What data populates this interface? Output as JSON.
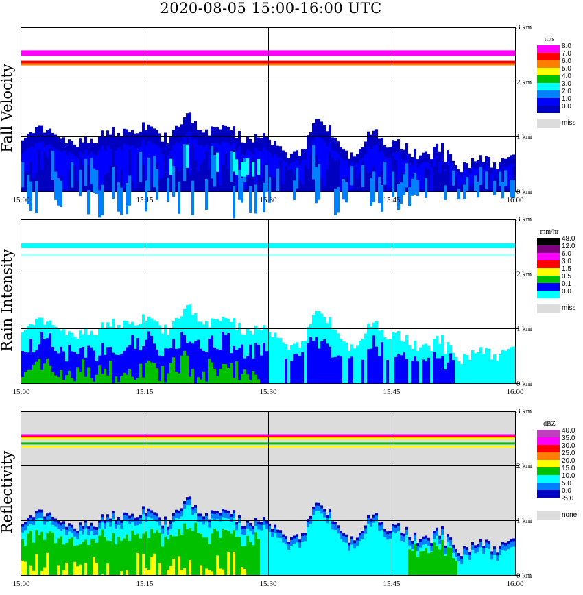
{
  "title": "2020-08-05   15:00-16:00 UTC",
  "x_ticks": [
    "15:00",
    "15:15",
    "15:30",
    "15:45",
    "16:00"
  ],
  "y_ticks": [
    "0 km",
    "1 km",
    "2 km",
    "3 km"
  ],
  "panels": [
    {
      "name": "Fall Velocity",
      "unit": "m/s",
      "legend": [
        {
          "label": "8.0",
          "color": "#ff00ff"
        },
        {
          "label": "7.0",
          "color": "#ff0000"
        },
        {
          "label": "6.0",
          "color": "#ff8000"
        },
        {
          "label": "5.0",
          "color": "#ffff00"
        },
        {
          "label": "4.0",
          "color": "#00c000"
        },
        {
          "label": "3.0",
          "color": "#00ffff"
        },
        {
          "label": "2.0",
          "color": "#0080ff"
        },
        {
          "label": "1.0",
          "color": "#0000ff"
        },
        {
          "label": "0.0",
          "color": "#0000c0"
        },
        {
          "label": "miss",
          "color": "#dcdcdc"
        }
      ]
    },
    {
      "name": "Rain Intensity",
      "unit": "mm/hr",
      "legend": [
        {
          "label": "48.0",
          "color": "#000000"
        },
        {
          "label": "12.0",
          "color": "#800080"
        },
        {
          "label": "6.0",
          "color": "#ff00ff"
        },
        {
          "label": "3.0",
          "color": "#ff0000"
        },
        {
          "label": "1.5",
          "color": "#ffff00"
        },
        {
          "label": "0.5",
          "color": "#00c000"
        },
        {
          "label": "0.1",
          "color": "#0000ff"
        },
        {
          "label": "0.0",
          "color": "#00ffff"
        },
        {
          "label": "miss",
          "color": "#dcdcdc"
        }
      ]
    },
    {
      "name": "Reflectivity",
      "unit": "dBZ",
      "legend": [
        {
          "label": "40.0",
          "color": "#c040c0"
        },
        {
          "label": "35.0",
          "color": "#ff00ff"
        },
        {
          "label": "30.0",
          "color": "#ff0000"
        },
        {
          "label": "25.0",
          "color": "#ff8000"
        },
        {
          "label": "20.0",
          "color": "#ffff00"
        },
        {
          "label": "15.0",
          "color": "#00c000"
        },
        {
          "label": "10.0",
          "color": "#00ffff"
        },
        {
          "label": "5.0",
          "color": "#0080ff"
        },
        {
          "label": "0.0",
          "color": "#0000c0"
        },
        {
          "label": "-5.0",
          "color": "#ffffff"
        },
        {
          "label": "none",
          "color": "#dcdcdc"
        }
      ]
    }
  ],
  "chart_data": {
    "type": "heatmap",
    "x": [
      "15:00",
      "15:15",
      "15:30",
      "15:45",
      "16:00"
    ],
    "ylim": [
      0,
      3
    ],
    "y_unit": "km",
    "series": [
      {
        "name": "Fall Velocity",
        "unit": "m/s"
      },
      {
        "name": "Rain Intensity",
        "unit": "mm/hr"
      },
      {
        "name": "Reflectivity",
        "unit": "dBZ"
      }
    ],
    "grid": true
  }
}
